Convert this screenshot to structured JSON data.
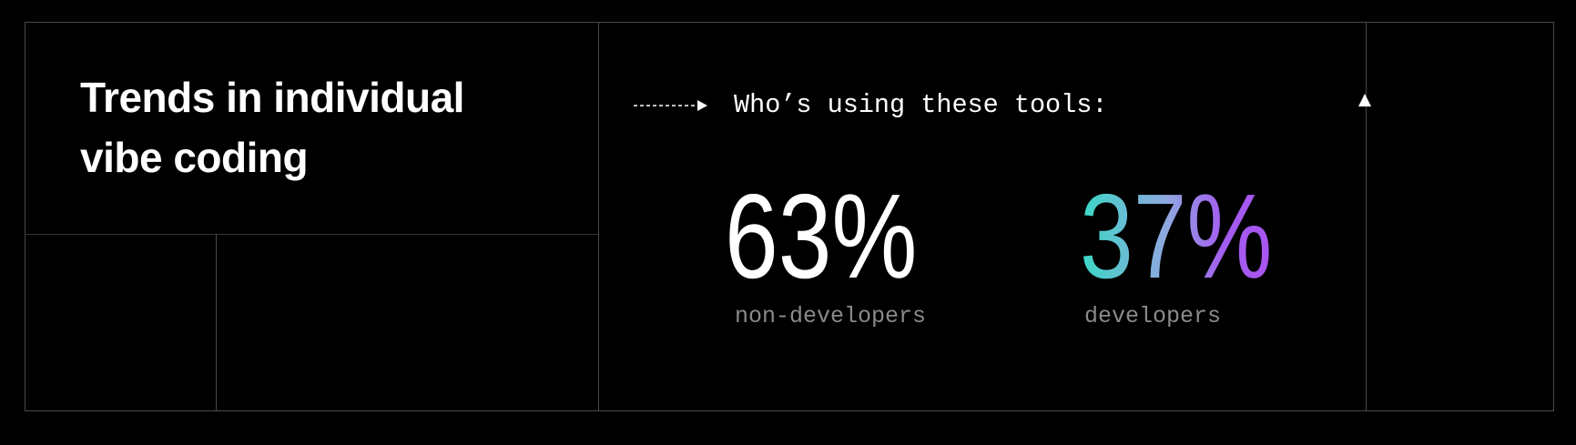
{
  "title_line1": "Trends in individual",
  "title_line2": "vibe coding",
  "heading": "Who’s using these tools:",
  "stats": [
    {
      "value": "63%",
      "label": "non-developers",
      "color": "#ffffff"
    },
    {
      "value": "37%",
      "label": "developers",
      "gradient": [
        "#3ad8c6",
        "#a855f0"
      ]
    }
  ],
  "icons": [
    "dashed-arrow-right-icon",
    "triangle-up-icon"
  ]
}
